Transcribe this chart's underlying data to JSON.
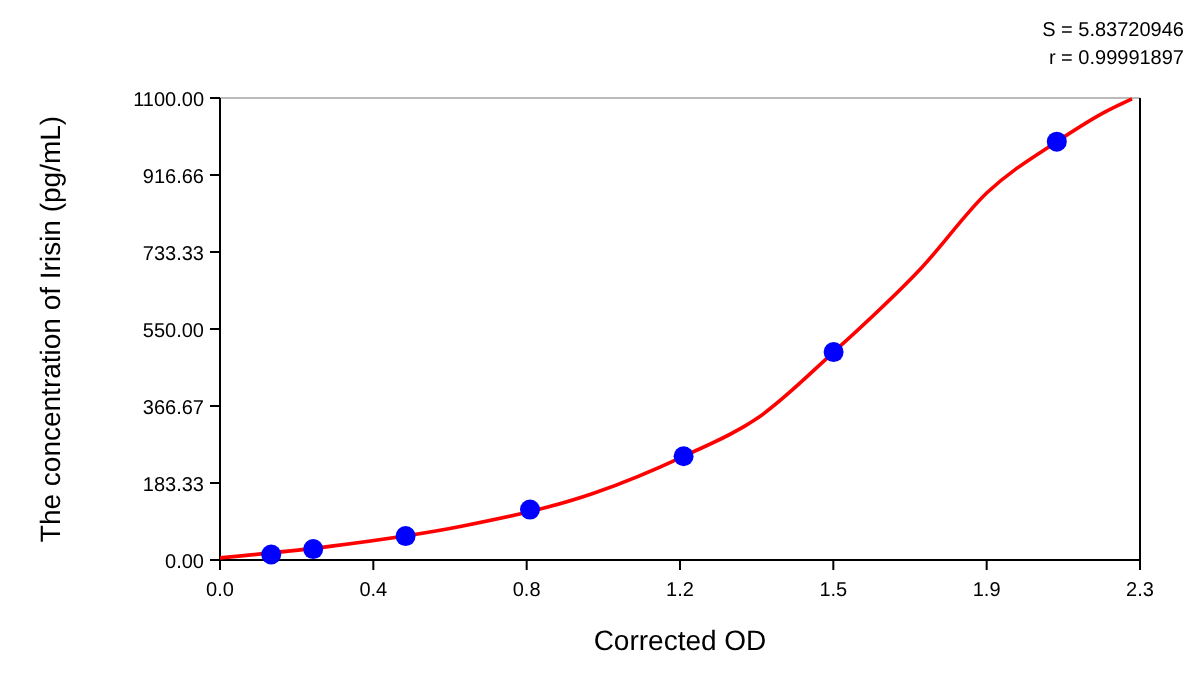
{
  "chart_data": {
    "type": "scatter",
    "xlabel": "Corrected OD",
    "ylabel": "The concentration of Irisin (pg/mL)",
    "annotations": [
      "S = 5.83720946",
      "r = 0.99991897"
    ],
    "xlim": [
      0,
      2.3
    ],
    "ylim": [
      0,
      1100
    ],
    "xticks": [
      {
        "value": 0,
        "label": "0.0"
      },
      {
        "value": 0.3833,
        "label": "0.4"
      },
      {
        "value": 0.7667,
        "label": "0.8"
      },
      {
        "value": 1.15,
        "label": "1.2"
      },
      {
        "value": 1.5333,
        "label": "1.5"
      },
      {
        "value": 1.9167,
        "label": "1.9"
      },
      {
        "value": 2.3,
        "label": "2.3"
      }
    ],
    "yticks": [
      {
        "value": 0,
        "label": "0.00"
      },
      {
        "value": 183.33,
        "label": "183.33"
      },
      {
        "value": 366.67,
        "label": "366.67"
      },
      {
        "value": 550,
        "label": "550.00"
      },
      {
        "value": 733.33,
        "label": "733.33"
      },
      {
        "value": 916.66,
        "label": "916.66"
      },
      {
        "value": 1100,
        "label": "1100.00"
      }
    ],
    "grid": false,
    "series": [
      {
        "type": "line",
        "color": "#ff0000",
        "marker": "none",
        "line_style": "solid",
        "x": [
          0,
          0.279,
          0.607,
          0.934,
          1.159,
          1.344,
          1.534,
          1.754,
          1.918,
          2.092,
          2.213,
          2.28
        ],
        "values": [
          5,
          33,
          81,
          159,
          247,
          338,
          495,
          696,
          875,
          996,
          1067,
          1098
        ]
      },
      {
        "color": "#0000ff",
        "marker": "circle",
        "x": [
          0.128,
          0.233,
          0.464,
          0.775,
          1.159,
          1.534,
          2.092
        ],
        "values": [
          13,
          26,
          57,
          120,
          247,
          495,
          996
        ]
      }
    ]
  }
}
